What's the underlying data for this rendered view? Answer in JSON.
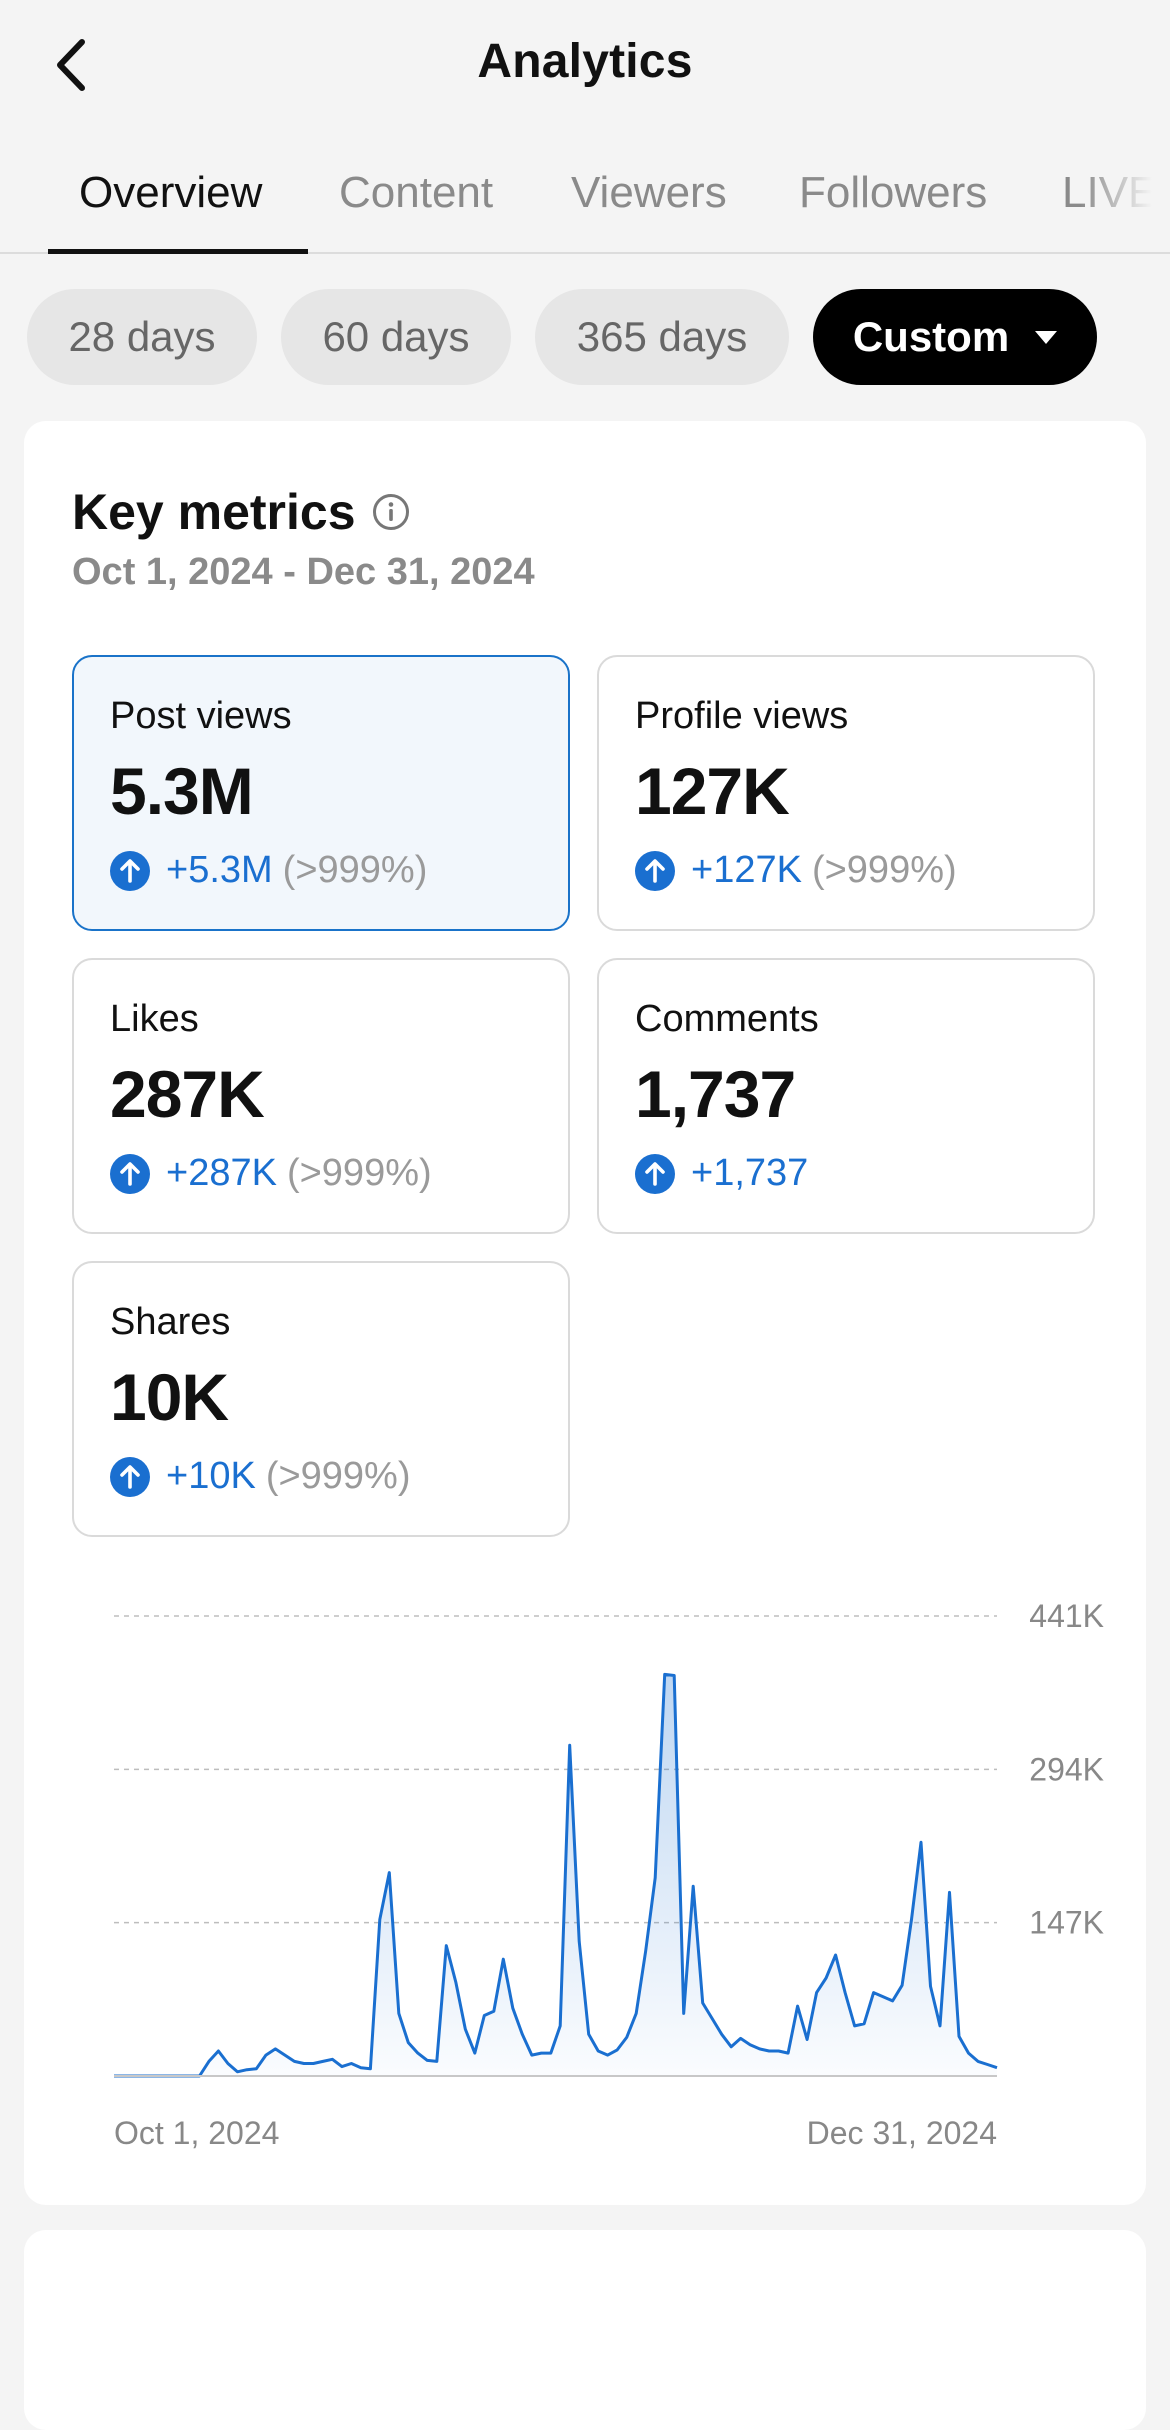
{
  "header": {
    "title": "Analytics"
  },
  "tabs": [
    {
      "label": "Overview",
      "active": true
    },
    {
      "label": "Content",
      "active": false
    },
    {
      "label": "Viewers",
      "active": false
    },
    {
      "label": "Followers",
      "active": false
    },
    {
      "label": "LIVE",
      "active": false
    }
  ],
  "filters": [
    {
      "label": "28 days",
      "selected": false
    },
    {
      "label": "60 days",
      "selected": false
    },
    {
      "label": "365 days",
      "selected": false
    },
    {
      "label": "Custom",
      "selected": true
    }
  ],
  "key_metrics": {
    "title": "Key metrics",
    "range": "Oct 1, 2024 - Dec 31, 2024",
    "items": [
      {
        "label": "Post views",
        "value": "5.3M",
        "delta": "+5.3M",
        "pct": "(>999%)",
        "selected": true
      },
      {
        "label": "Profile views",
        "value": "127K",
        "delta": "+127K",
        "pct": "(>999%)",
        "selected": false
      },
      {
        "label": "Likes",
        "value": "287K",
        "delta": "+287K",
        "pct": "(>999%)",
        "selected": false
      },
      {
        "label": "Comments",
        "value": "1,737",
        "delta": "+1,737",
        "pct": "",
        "selected": false
      },
      {
        "label": "Shares",
        "value": "10K",
        "delta": "+10K",
        "pct": "(>999%)",
        "selected": false
      }
    ]
  },
  "colors": {
    "accent": "#1a6fd0",
    "selected_border": "#1a73c9"
  },
  "chart_data": {
    "type": "area",
    "title": "",
    "xlabel": "",
    "ylabel": "",
    "x_start_label": "Oct 1, 2024",
    "x_end_label": "Dec 31, 2024",
    "y_ticks": [
      {
        "value": 147000,
        "label": "147K"
      },
      {
        "value": 294000,
        "label": "294K"
      },
      {
        "value": 441000,
        "label": "441K"
      }
    ],
    "ylim": [
      0,
      441000
    ],
    "grid": true,
    "series": [
      {
        "values": [
          0,
          0,
          0,
          0,
          0,
          0,
          0,
          0,
          0,
          0,
          14000,
          24000,
          12000,
          4000,
          6000,
          7000,
          20000,
          26000,
          20000,
          14000,
          12000,
          12000,
          14000,
          16000,
          9000,
          12000,
          8000,
          7000,
          150000,
          195000,
          60000,
          32000,
          22000,
          15000,
          14000,
          125000,
          90000,
          45000,
          22000,
          58000,
          62000,
          112000,
          65000,
          40000,
          20000,
          22000,
          22000,
          48000,
          317000,
          129000,
          40000,
          24000,
          20000,
          25000,
          37000,
          60000,
          120000,
          190000,
          385000,
          384000,
          60000,
          182000,
          70000,
          55000,
          40000,
          28000,
          36000,
          30000,
          26000,
          24000,
          24000,
          22000,
          67000,
          35000,
          80000,
          94000,
          116000,
          80000,
          48000,
          50000,
          80000,
          76000,
          72000,
          87000,
          150000,
          224000,
          86000,
          48000,
          176000,
          38000,
          22000,
          14000,
          11000,
          8000
        ]
      }
    ]
  }
}
